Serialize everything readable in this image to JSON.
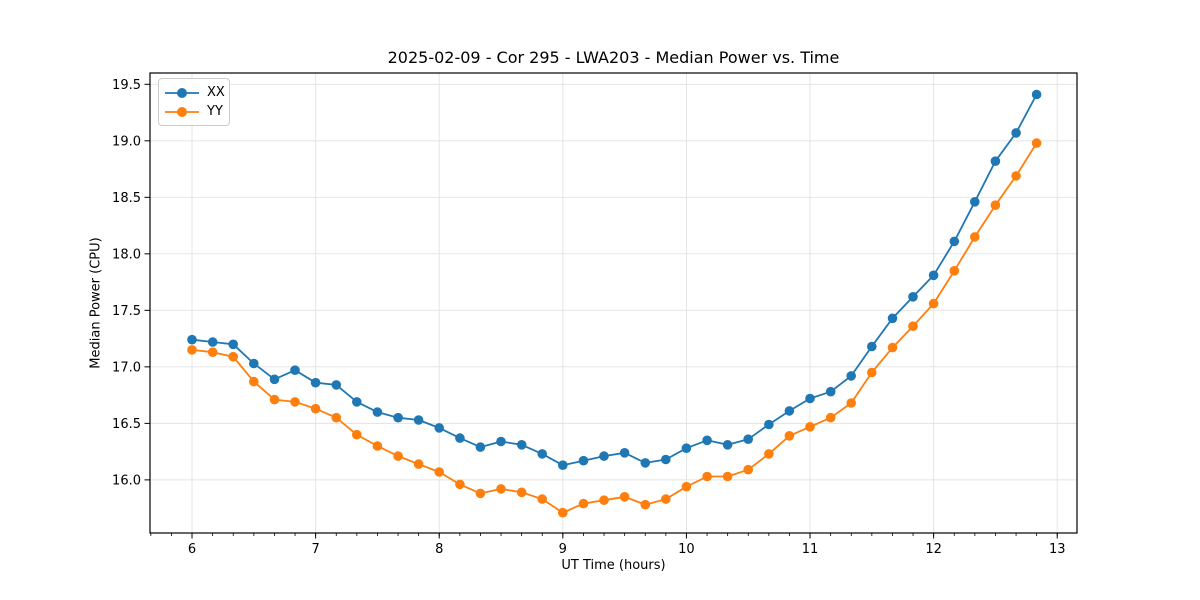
{
  "figure": {
    "title": "2025-02-09 - Cor 295 - LWA203 - Median Power vs. Time",
    "background": "#ffffff"
  },
  "legend": {
    "items": [
      {
        "label": "XX",
        "color": "#1f77b4"
      },
      {
        "label": "YY",
        "color": "#ff7f0e"
      }
    ]
  },
  "colors": {
    "series_xx": "#1f77b4",
    "series_yy": "#ff7f0e",
    "grid": "#e2e2e2",
    "spine": "#000000",
    "tick_label": "#000000"
  },
  "chart_data": {
    "type": "line",
    "title": "2025-02-09 - Cor 295 - LWA203 - Median Power vs. Time",
    "xlabel": "UT Time (hours)",
    "ylabel": "Median Power (CPU)",
    "xlim": [
      5.66,
      13.16
    ],
    "ylim": [
      15.53,
      19.6
    ],
    "xticks": [
      6,
      7,
      8,
      9,
      10,
      11,
      12,
      13
    ],
    "yticks": [
      16.0,
      16.5,
      17.0,
      17.5,
      18.0,
      18.5,
      19.0,
      19.5
    ],
    "x_minor_step": 0.16667,
    "grid": true,
    "legend_position": "upper-left",
    "marker": "o",
    "x": [
      6.0,
      6.167,
      6.333,
      6.5,
      6.667,
      6.833,
      7.0,
      7.167,
      7.333,
      7.5,
      7.667,
      7.833,
      8.0,
      8.167,
      8.333,
      8.5,
      8.667,
      8.833,
      9.0,
      9.167,
      9.333,
      9.5,
      9.667,
      9.833,
      10.0,
      10.167,
      10.333,
      10.5,
      10.667,
      10.833,
      11.0,
      11.167,
      11.333,
      11.5,
      11.667,
      11.833,
      12.0,
      12.167,
      12.333,
      12.5,
      12.667,
      12.833
    ],
    "series": [
      {
        "name": "XX",
        "color": "#1f77b4",
        "values": [
          17.24,
          17.22,
          17.2,
          17.03,
          16.89,
          16.97,
          16.86,
          16.84,
          16.69,
          16.6,
          16.55,
          16.53,
          16.46,
          16.37,
          16.29,
          16.34,
          16.31,
          16.23,
          16.13,
          16.17,
          16.21,
          16.24,
          16.15,
          16.18,
          16.28,
          16.35,
          16.31,
          16.36,
          16.49,
          16.61,
          16.72,
          16.78,
          16.92,
          17.18,
          17.43,
          17.62,
          17.81,
          18.11,
          18.46,
          18.82,
          19.07,
          19.41
        ]
      },
      {
        "name": "YY",
        "color": "#ff7f0e",
        "values": [
          17.15,
          17.13,
          17.09,
          16.87,
          16.71,
          16.69,
          16.63,
          16.55,
          16.4,
          16.3,
          16.21,
          16.14,
          16.07,
          15.96,
          15.88,
          15.92,
          15.89,
          15.83,
          15.71,
          15.79,
          15.82,
          15.85,
          15.78,
          15.83,
          15.94,
          16.03,
          16.03,
          16.09,
          16.23,
          16.39,
          16.47,
          16.55,
          16.68,
          16.95,
          17.17,
          17.36,
          17.56,
          17.85,
          18.15,
          18.43,
          18.69,
          18.98
        ]
      }
    ]
  }
}
